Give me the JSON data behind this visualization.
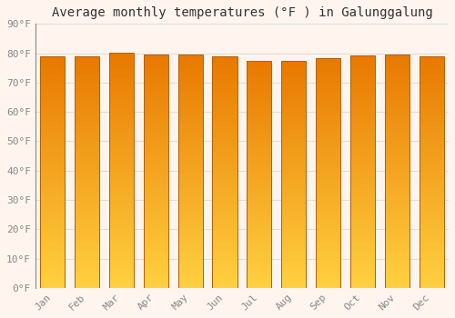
{
  "title": "Average monthly temperatures (°F ) in Galunggalung",
  "months": [
    "Jan",
    "Feb",
    "Mar",
    "Apr",
    "May",
    "Jun",
    "Jul",
    "Aug",
    "Sep",
    "Oct",
    "Nov",
    "Dec"
  ],
  "values": [
    78.8,
    78.8,
    80.2,
    79.5,
    79.5,
    78.8,
    77.5,
    77.5,
    78.3,
    79.2,
    79.7,
    78.8
  ],
  "bar_color_top": "#E87800",
  "bar_color_bottom": "#FFD040",
  "bar_edge_color": "#B06000",
  "background_color": "#FFF5EE",
  "plot_bg_color": "#FFF5EE",
  "grid_color": "#DDDDDD",
  "ylim": [
    0,
    90
  ],
  "yticks": [
    0,
    10,
    20,
    30,
    40,
    50,
    60,
    70,
    80,
    90
  ],
  "title_fontsize": 10,
  "tick_fontsize": 8,
  "tick_color": "#888888",
  "font_family": "monospace"
}
